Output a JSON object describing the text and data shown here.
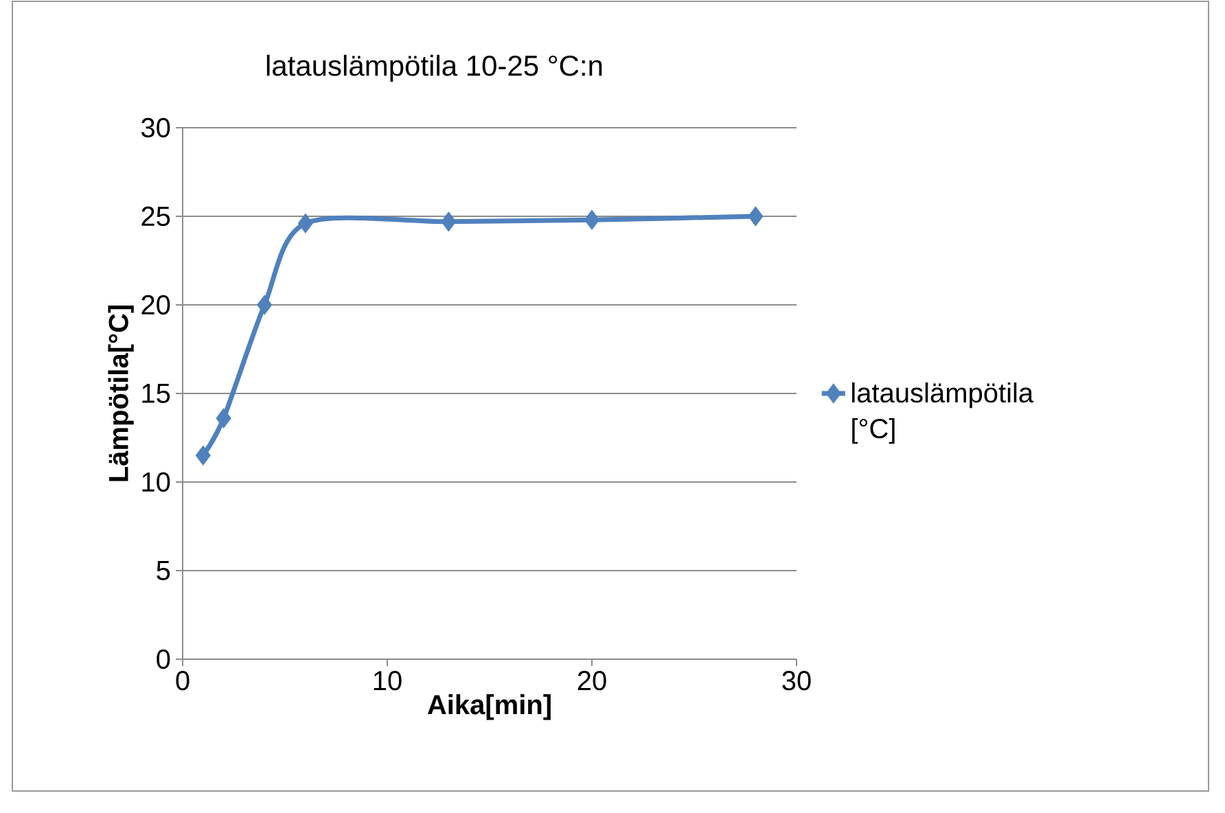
{
  "chart_data": {
    "type": "line",
    "title": "latauslämpötila 10-25 °C:n",
    "xlabel": "Aika[min]",
    "ylabel": "Lämpötila[°C]",
    "x": [
      1,
      2,
      4,
      6,
      13,
      20,
      28
    ],
    "series": [
      {
        "name": "latauslämpötila [°C]",
        "color": "#4f81bd",
        "values": [
          11.5,
          13.6,
          20,
          24.6,
          24.7,
          24.8,
          25
        ]
      }
    ],
    "xlim": [
      0,
      30
    ],
    "xticks": [
      0,
      10,
      20,
      30
    ],
    "ylim": [
      0,
      30
    ],
    "yticks": [
      0,
      5,
      10,
      15,
      20,
      25,
      30
    ],
    "grid": "y",
    "legend": "right",
    "marker": "diamond",
    "line_style": "solid"
  }
}
